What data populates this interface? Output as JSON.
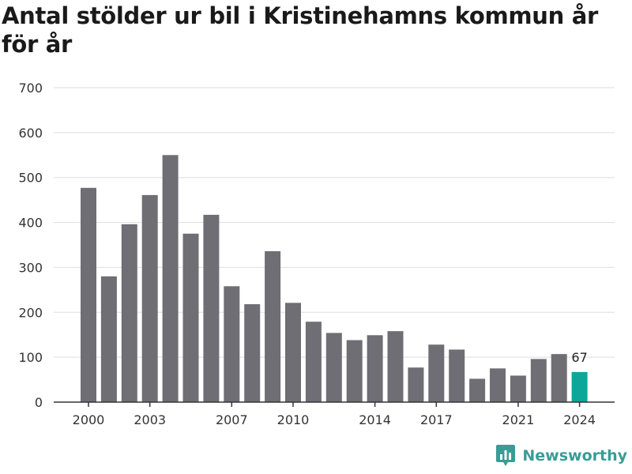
{
  "chart_data": {
    "type": "bar",
    "title": "Antal stölder ur bil i Kristinehamns kommun år för år",
    "xlabel": "",
    "ylabel": "",
    "ylim": [
      0,
      700
    ],
    "yticks": [
      0,
      100,
      200,
      300,
      400,
      500,
      600,
      700
    ],
    "xticks": [
      2000,
      2003,
      2007,
      2010,
      2014,
      2017,
      2021,
      2024
    ],
    "categories": [
      2000,
      2001,
      2002,
      2003,
      2004,
      2005,
      2006,
      2007,
      2008,
      2009,
      2010,
      2011,
      2012,
      2013,
      2014,
      2015,
      2016,
      2017,
      2018,
      2019,
      2020,
      2021,
      2022,
      2023,
      2024
    ],
    "values": [
      477,
      280,
      396,
      461,
      550,
      375,
      417,
      258,
      218,
      336,
      221,
      179,
      154,
      138,
      149,
      158,
      77,
      128,
      117,
      52,
      75,
      59,
      96,
      107,
      67
    ],
    "highlight_index": 24,
    "highlight_label": "67",
    "colors": {
      "bar": "#6f6e74",
      "highlight": "#0fa69a",
      "grid": "#dddddd",
      "axis": "#333333"
    },
    "grid": true,
    "legend": "none"
  },
  "brand": {
    "name": "Newsworthy",
    "icon": "bar-chart-speech-bubble-icon",
    "color": "#3a9c96"
  }
}
